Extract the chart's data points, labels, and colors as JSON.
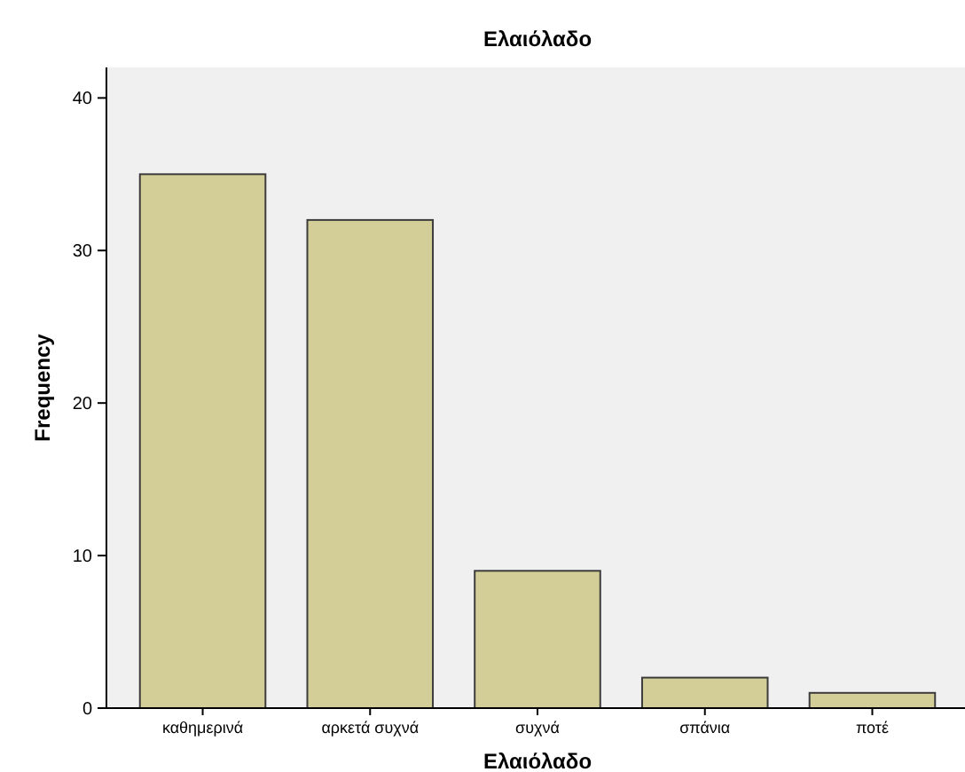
{
  "chart_data": {
    "type": "bar",
    "title": "Ελαιόλαδο",
    "xlabel": "Ελαιόλαδο",
    "ylabel": "Frequency",
    "categories": [
      "καθημερινά",
      "αρκετά συχνά",
      "συχνά",
      "σπάνια",
      "ποτέ"
    ],
    "values": [
      35,
      32,
      9,
      2,
      1
    ],
    "color": "#d3ce97",
    "ylim": [
      0,
      42
    ],
    "yticks": [
      0,
      10,
      20,
      30,
      40
    ],
    "grid": false
  }
}
